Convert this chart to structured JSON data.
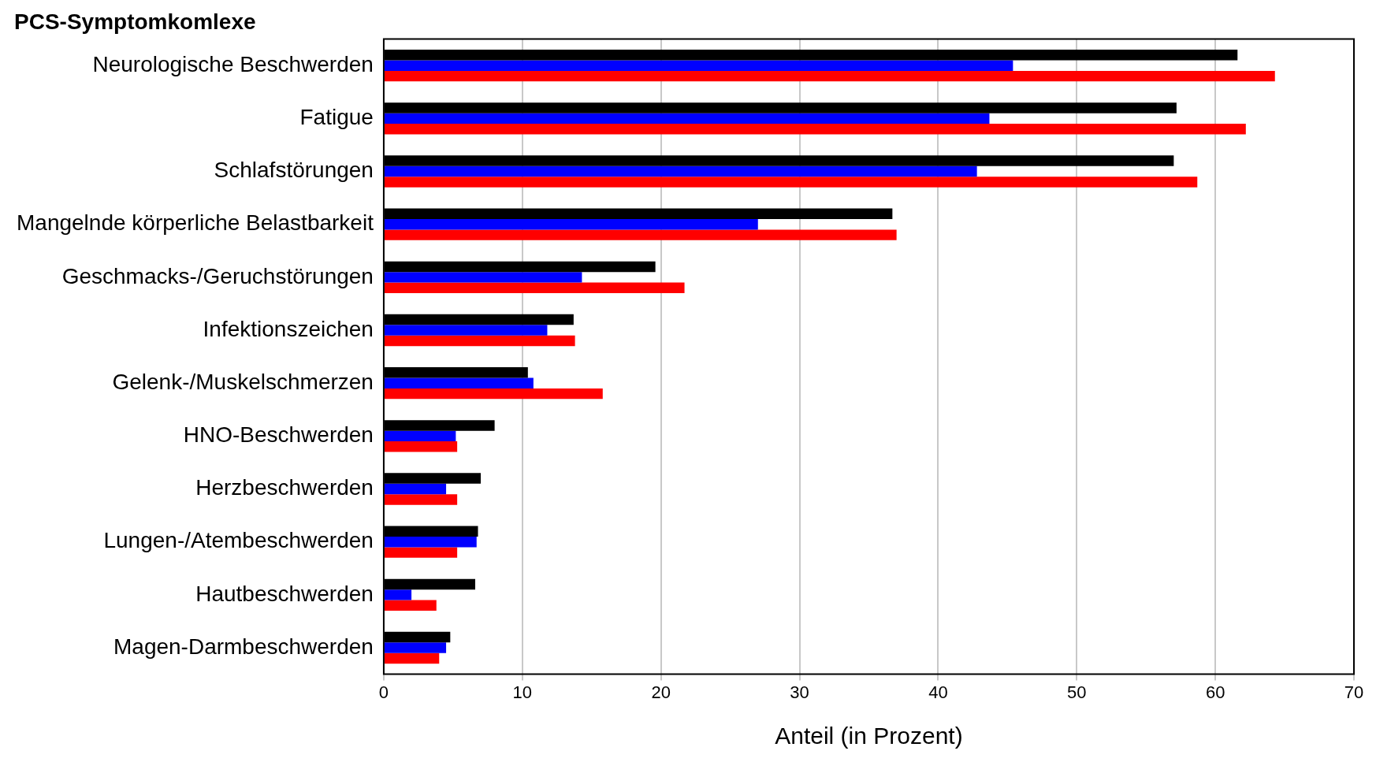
{
  "chart_data": {
    "type": "bar",
    "orientation": "horizontal",
    "title": "PCS-Symptomkomlexe",
    "xlabel": "Anteil (in Prozent)",
    "categories": [
      "Neurologische Beschwerden",
      "Fatigue",
      "Schlafstörungen",
      "Mangelnde körperliche Belastbarkeit",
      "Geschmacks-/Geruchstörungen",
      "Infektionszeichen",
      "Gelenk-/Muskelschmerzen",
      "HNO-Beschwerden",
      "Herzbeschwerden",
      "Lungen-/Atembeschwerden",
      "Hautbeschwerden",
      "Magen-Darmbeschwerden"
    ],
    "series": [
      {
        "color": "#000000",
        "values": [
          61.6,
          57.2,
          57.0,
          36.7,
          19.6,
          13.7,
          10.4,
          8.0,
          7.0,
          6.8,
          6.6,
          4.8
        ]
      },
      {
        "color": "#0000ff",
        "values": [
          45.4,
          43.7,
          42.8,
          27.0,
          14.3,
          11.8,
          10.8,
          5.2,
          4.5,
          6.7,
          2.0,
          4.5
        ]
      },
      {
        "color": "#ff0000",
        "values": [
          64.3,
          62.2,
          58.7,
          37.0,
          21.7,
          13.8,
          15.8,
          5.3,
          5.3,
          5.3,
          3.8,
          4.0
        ]
      }
    ],
    "xlim": [
      0,
      70
    ],
    "xticks": [
      0,
      10,
      20,
      30,
      40,
      50,
      60,
      70
    ],
    "grid": "x",
    "legend": false
  }
}
